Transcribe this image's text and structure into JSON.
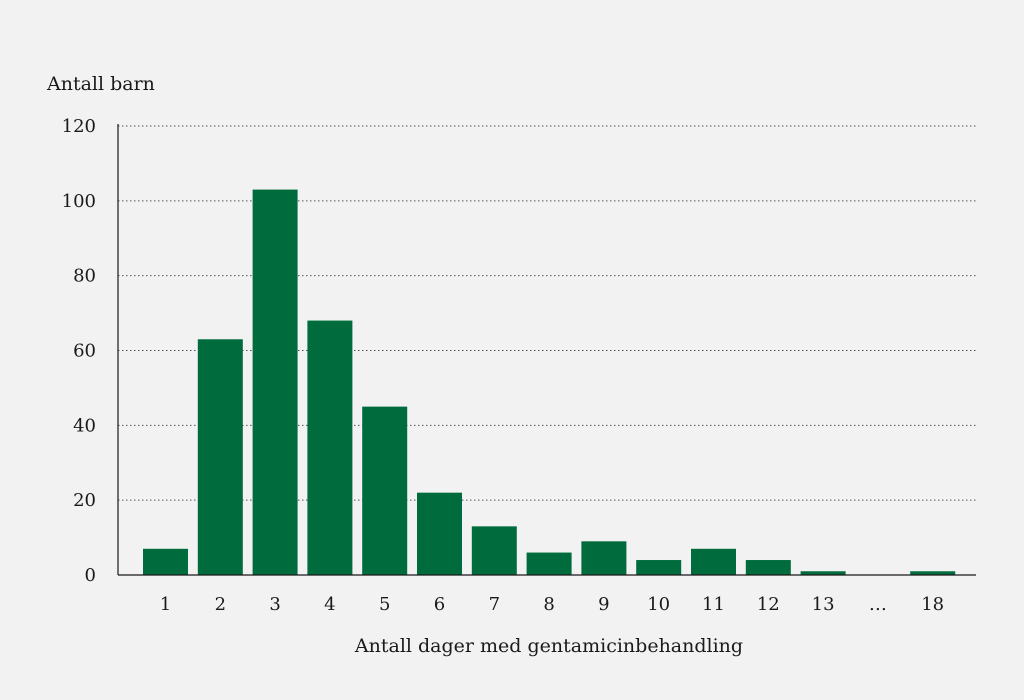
{
  "chart_data": {
    "type": "bar",
    "title": "",
    "ylabel": "Antall barn",
    "xlabel": "Antall dager med gentamicinbehandling",
    "categories": [
      "1",
      "2",
      "3",
      "4",
      "5",
      "6",
      "7",
      "8",
      "9",
      "10",
      "11",
      "12",
      "13",
      "…",
      "18"
    ],
    "values": [
      7,
      63,
      103,
      68,
      45,
      22,
      13,
      6,
      9,
      4,
      7,
      4,
      1,
      null,
      1
    ],
    "ylim": [
      0,
      120
    ],
    "yticks": [
      0,
      20,
      40,
      60,
      80,
      100,
      120
    ],
    "grid": true,
    "grid_style": "dotted",
    "colors": {
      "bar": "#006b3c",
      "background": "#f2f2f2",
      "axis": "#1a1a1a",
      "grid": "#555555"
    }
  }
}
